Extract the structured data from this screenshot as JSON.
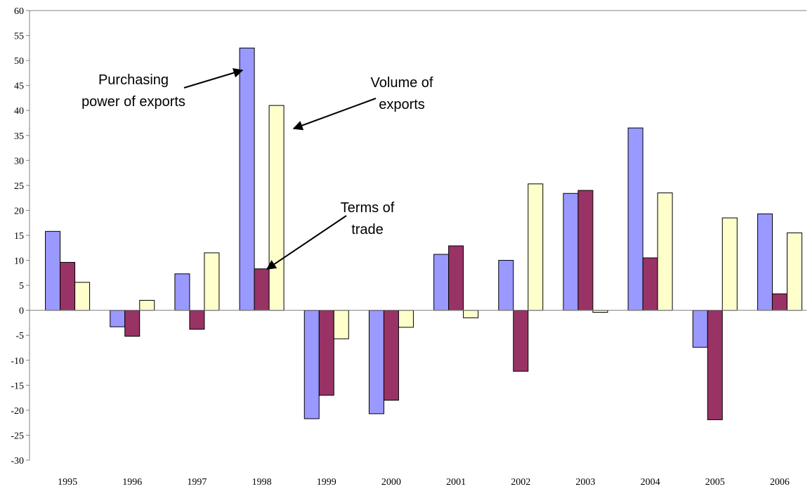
{
  "chart_data": {
    "type": "bar",
    "categories": [
      "1995",
      "1996",
      "1997",
      "1998",
      "1999",
      "2000",
      "2001",
      "2002",
      "2003",
      "2004",
      "2005",
      "2006"
    ],
    "series": [
      {
        "color": "#9999ff",
        "values": [
          15.8,
          -3.3,
          7.3,
          52.5,
          -21.7,
          -20.7,
          11.2,
          10.0,
          23.4,
          36.5,
          -7.4,
          19.3
        ]
      },
      {
        "color": "#993366",
        "values": [
          9.6,
          -5.2,
          -3.8,
          8.3,
          -17.0,
          -18.0,
          12.9,
          -12.2,
          24.0,
          10.5,
          -21.9,
          3.3
        ]
      },
      {
        "color": "#ffffcc",
        "values": [
          5.6,
          2.0,
          11.5,
          41.0,
          -5.7,
          -3.4,
          -1.5,
          25.3,
          -0.4,
          23.5,
          18.5,
          15.5
        ]
      }
    ],
    "annotations": [
      {
        "lines": [
          "Purchasing",
          "power of exports"
        ]
      },
      {
        "lines": [
          "Volume of",
          "exports"
        ]
      },
      {
        "lines": [
          "Terms of",
          "trade"
        ]
      }
    ],
    "ylim": [
      -30,
      60
    ],
    "yticks": [
      -30,
      -25,
      -20,
      -15,
      -10,
      -5,
      0,
      5,
      10,
      15,
      20,
      25,
      30,
      35,
      40,
      45,
      50,
      55,
      60
    ]
  }
}
